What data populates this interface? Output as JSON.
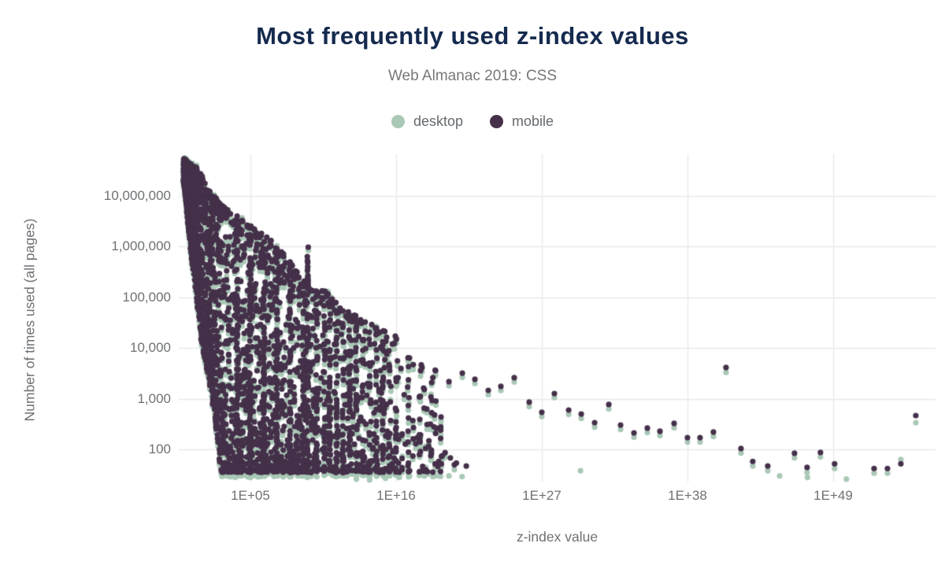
{
  "header": {
    "title": "Most frequently used z-index values",
    "subtitle": "Web Almanac 2019: CSS"
  },
  "legend": [
    {
      "label": "desktop",
      "color": "#a9c8b6"
    },
    {
      "label": "mobile",
      "color": "#45304a"
    }
  ],
  "colors": {
    "title": "#152a4e",
    "muted_text": "#6e7174",
    "gridline": "#e9e9e9",
    "background": "#ffffff",
    "desktop": "#a9c8b6",
    "mobile": "#45304a"
  },
  "chart_data": {
    "type": "scatter",
    "title": "Most frequently used z-index values",
    "subtitle": "Web Almanac 2019: CSS",
    "xlabel": "z-index value",
    "ylabel": "Number of times used (all pages)",
    "x_scale": "log",
    "y_scale": "log",
    "grid": true,
    "legend_position": "top",
    "x_ticks": [
      {
        "label": "1E+05",
        "exp": 5
      },
      {
        "label": "1E+16",
        "exp": 16
      },
      {
        "label": "1E+27",
        "exp": 27
      },
      {
        "label": "1E+38",
        "exp": 38
      },
      {
        "label": "1E+49",
        "exp": 49
      }
    ],
    "y_ticks": [
      {
        "label": "10,000,000",
        "value": 10000000
      },
      {
        "label": "1,000,000",
        "value": 1000000
      },
      {
        "label": "100,000",
        "value": 100000
      },
      {
        "label": "10,000",
        "value": 10000
      },
      {
        "label": "1,000",
        "value": 1000
      },
      {
        "label": "100",
        "value": 100
      }
    ],
    "x_range_exp": [
      0,
      56.5
    ],
    "y_range": [
      25,
      60000000
    ],
    "series": [
      {
        "name": "desktop",
        "color": "#a9c8b6",
        "marker": "circle",
        "radius_px": 3.6
      },
      {
        "name": "mobile",
        "color": "#45304a",
        "marker": "circle",
        "radius_px": 3.6
      }
    ],
    "dense_cluster": {
      "description": "Thousands of overlapping desktop/mobile point pairs for z-index values 1 to ~1e19; mobile drawn above desktop so the green desktop dots peek out a few px below/left of the plum mobile mass.",
      "seed": 7,
      "base_pairs": 2600,
      "head_pairs": 320,
      "exp_power_bias": 1.9,
      "exp_max": 19.5,
      "floor_count": 36,
      "desktop_offset_decades": 0.08,
      "envelope_top_exp_count": [
        [
          0,
          52000000
        ],
        [
          0.96,
          34000000
        ],
        [
          1.85,
          13800000
        ],
        [
          2.74,
          7200000
        ],
        [
          3.63,
          5000000
        ],
        [
          4.53,
          3100000
        ],
        [
          5.42,
          2050000
        ],
        [
          6.31,
          1480000
        ],
        [
          7.2,
          930000
        ],
        [
          8.09,
          460000
        ],
        [
          8.87,
          225000
        ],
        [
          9.2,
          200000
        ],
        [
          9.45,
          160000
        ],
        [
          9.7,
          140000
        ],
        [
          10.59,
          132000
        ],
        [
          11.48,
          77000
        ],
        [
          12.37,
          54000
        ],
        [
          13.27,
          38000
        ],
        [
          14.16,
          29000
        ],
        [
          15.05,
          22000
        ],
        [
          15.94,
          17000
        ],
        [
          16.84,
          7500
        ],
        [
          17.73,
          4900
        ],
        [
          18.62,
          3900
        ],
        [
          19.5,
          3400
        ]
      ],
      "envelope_bottom_exp_count": [
        [
          0,
          20000000
        ],
        [
          0.18,
          6800000
        ],
        [
          0.42,
          1630000
        ],
        [
          0.6,
          560000
        ],
        [
          0.84,
          190000
        ],
        [
          1.08,
          45000
        ],
        [
          1.43,
          9300
        ],
        [
          1.85,
          2600
        ],
        [
          2.15,
          890
        ],
        [
          2.39,
          300
        ],
        [
          2.62,
          103
        ],
        [
          2.72,
          36
        ],
        [
          56,
          36
        ]
      ],
      "stripes_exp_strength": [
        [
          4,
          60
        ],
        [
          5,
          85
        ],
        [
          6,
          75
        ],
        [
          7,
          65
        ],
        [
          8,
          55
        ],
        [
          9,
          50
        ],
        [
          9.33,
          55
        ],
        [
          10,
          40
        ],
        [
          10.6,
          30
        ],
        [
          11,
          34
        ],
        [
          11.5,
          26
        ],
        [
          12,
          30
        ],
        [
          12.5,
          22
        ],
        [
          13,
          26
        ],
        [
          13.5,
          20
        ],
        [
          14,
          22
        ],
        [
          14.5,
          16
        ],
        [
          15,
          18
        ],
        [
          15.5,
          14
        ],
        [
          16,
          16
        ],
        [
          16.9,
          10
        ],
        [
          17.8,
          8
        ],
        [
          18.7,
          6
        ],
        [
          19.4,
          5
        ]
      ],
      "stripe_top_override": [
        [
          9.33,
          1250000
        ]
      ]
    },
    "tail_points_exp_mobile_desktop": [
      [
        11.96,
        30500,
        24700
      ],
      [
        12.97,
        32700,
        26500
      ],
      [
        13.98,
        20500,
        16800
      ],
      [
        14.99,
        13400,
        11000
      ],
      [
        15.94,
        17200,
        14000
      ],
      [
        17.01,
        6360,
        5200
      ],
      [
        17.96,
        4130,
        3400
      ],
      [
        18.98,
        3570,
        2950
      ],
      [
        19.7,
        86,
        70
      ],
      [
        19.99,
        2170,
        1800
      ],
      [
        20.4,
        50,
        40
      ],
      [
        21.0,
        3200,
        2650
      ],
      [
        21.95,
        2420,
        2000
      ],
      [
        22.96,
        1460,
        1200
      ],
      [
        23.91,
        1750,
        1450
      ],
      [
        24.92,
        2600,
        2150
      ],
      [
        26.05,
        857,
        700
      ],
      [
        27.0,
        540,
        445
      ],
      [
        27.95,
        1266,
        1050
      ],
      [
        29.03,
        598,
        490
      ],
      [
        29.98,
        500,
        410
      ],
      [
        30.99,
        337,
        275
      ],
      [
        32.06,
        769,
        630
      ],
      [
        32.95,
        303,
        248
      ],
      [
        33.96,
        212,
        174
      ],
      [
        34.97,
        263,
        215
      ],
      [
        35.92,
        228,
        187
      ],
      [
        36.99,
        326,
        268
      ],
      [
        38.0,
        171,
        140
      ],
      [
        38.95,
        171,
        140
      ],
      [
        39.96,
        220,
        181
      ],
      [
        40.91,
        4130,
        3300
      ],
      [
        42.04,
        104,
        85
      ],
      [
        42.93,
        58,
        47
      ],
      [
        44.06,
        47,
        38
      ],
      [
        46.08,
        84,
        68
      ],
      [
        47.03,
        44,
        35
      ],
      [
        48.04,
        87,
        71
      ],
      [
        49.11,
        52,
        42
      ],
      [
        52.09,
        42,
        34
      ],
      [
        53.1,
        42,
        34
      ],
      [
        54.11,
        52,
        63
      ],
      [
        55.24,
        465,
        337
      ]
    ],
    "desktop_only_points_exp_count": [
      [
        13.0,
        26
      ],
      [
        14.0,
        25
      ],
      [
        15.2,
        27
      ],
      [
        18.98,
        30
      ],
      [
        19.99,
        30
      ],
      [
        20.98,
        29
      ],
      [
        29.92,
        38
      ],
      [
        44.96,
        30
      ],
      [
        47.06,
        28
      ],
      [
        50.0,
        26
      ]
    ],
    "mobile_only_points_exp_count": [
      [
        20.1,
        68
      ],
      [
        20.55,
        54
      ],
      [
        21.3,
        47
      ]
    ]
  }
}
